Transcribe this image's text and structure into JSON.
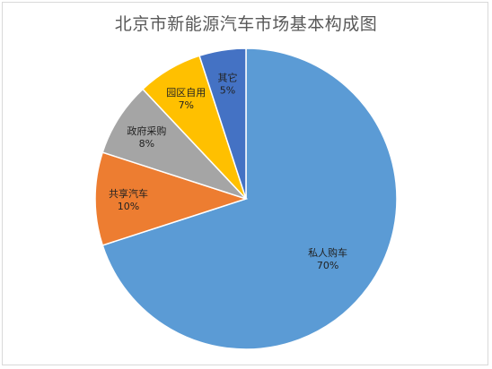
{
  "chart_data": {
    "type": "pie",
    "title": "北京市新能源汽车市场基本构成图",
    "slices": [
      {
        "label": "私人购车",
        "value": 70,
        "pct_label": "70%",
        "color": "#5B9BD5"
      },
      {
        "label": "共享汽车",
        "value": 10,
        "pct_label": "10%",
        "color": "#ED7D31"
      },
      {
        "label": "政府采购",
        "value": 8,
        "pct_label": "8%",
        "color": "#A5A5A5"
      },
      {
        "label": "园区自用",
        "value": 7,
        "pct_label": "7%",
        "color": "#FFC000"
      },
      {
        "label": "其它",
        "value": 5,
        "pct_label": "5%",
        "color": "#4472C4"
      }
    ],
    "legend": "none",
    "data_labels": "inside"
  }
}
